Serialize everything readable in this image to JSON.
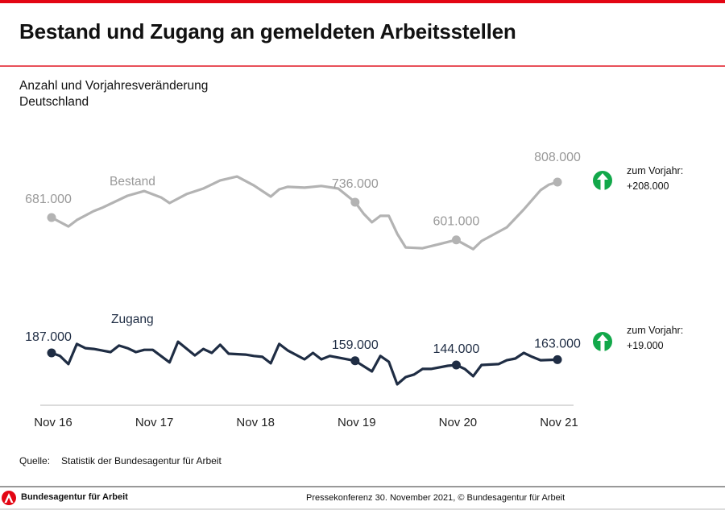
{
  "header": {
    "title": "Bestand und Zugang an gemeldeten Arbeitsstellen"
  },
  "subtitle": {
    "line1": "Anzahl und Vorjahresveränderung",
    "line2": "Deutschland"
  },
  "source": {
    "label": "Quelle:",
    "text": "Statistik der Bundesagentur für Arbeit"
  },
  "footer": {
    "brand": "Bundesagentur für Arbeit",
    "press": "Pressekonferenz 30. November 2021, © Bundesagentur für Arbeit"
  },
  "colors": {
    "accent": "#e30613",
    "bestand": "#b3b3b3",
    "bestand_label": "#999999",
    "zugang": "#1f2d44",
    "arrow": "#12a84a"
  },
  "yoy": [
    {
      "label": "zum Vorjahr:",
      "value": "+208.000",
      "icon": "arrow-up-icon"
    },
    {
      "label": "zum Vorjahr:",
      "value": "+19.000",
      "icon": "arrow-up-icon"
    }
  ],
  "chart_data": {
    "type": "line",
    "x_ticks": [
      "Nov 16",
      "Nov 17",
      "Nov 18",
      "Nov 19",
      "Nov 20",
      "Nov 21"
    ],
    "grid": false,
    "series": [
      {
        "name": "Bestand",
        "points": [
          [
            "2016-11",
            681
          ],
          [
            "2017-01",
            649
          ],
          [
            "2017-02",
            672
          ],
          [
            "2017-04",
            704
          ],
          [
            "2017-05",
            716
          ],
          [
            "2017-08",
            759
          ],
          [
            "2017-10",
            776
          ],
          [
            "2017-12",
            753
          ],
          [
            "2018-01",
            733
          ],
          [
            "2018-03",
            765
          ],
          [
            "2018-05",
            785
          ],
          [
            "2018-07",
            814
          ],
          [
            "2018-09",
            828
          ],
          [
            "2018-11",
            796
          ],
          [
            "2019-01",
            756
          ],
          [
            "2019-02",
            782
          ],
          [
            "2019-03",
            791
          ],
          [
            "2019-05",
            788
          ],
          [
            "2019-07",
            794
          ],
          [
            "2019-09",
            785
          ],
          [
            "2019-11",
            736
          ],
          [
            "2019-12",
            695
          ],
          [
            "2020-01",
            664
          ],
          [
            "2020-02",
            687
          ],
          [
            "2020-03",
            687
          ],
          [
            "2020-04",
            623
          ],
          [
            "2020-05",
            574
          ],
          [
            "2020-07",
            571
          ],
          [
            "2020-09",
            586
          ],
          [
            "2020-11",
            601
          ],
          [
            "2021-01",
            568
          ],
          [
            "2021-02",
            597
          ],
          [
            "2021-05",
            646
          ],
          [
            "2021-07",
            710
          ],
          [
            "2021-09",
            779
          ],
          [
            "2021-10",
            799
          ],
          [
            "2021-11",
            808
          ]
        ],
        "labels": [
          {
            "x": "2016-11",
            "text": "681.000"
          },
          {
            "x": "2019-11",
            "text": "736.000"
          },
          {
            "x": "2020-11",
            "text": "601.000"
          },
          {
            "x": "2021-11",
            "text": "808.000"
          }
        ]
      },
      {
        "name": "Zugang",
        "points": [
          [
            "2016-11",
            187
          ],
          [
            "2016-12",
            176
          ],
          [
            "2017-01",
            147
          ],
          [
            "2017-02",
            219
          ],
          [
            "2017-03",
            204
          ],
          [
            "2017-04",
            201
          ],
          [
            "2017-06",
            190
          ],
          [
            "2017-07",
            213
          ],
          [
            "2017-08",
            204
          ],
          [
            "2017-09",
            190
          ],
          [
            "2017-10",
            198
          ],
          [
            "2017-11",
            198
          ],
          [
            "2018-01",
            153
          ],
          [
            "2018-02",
            227
          ],
          [
            "2018-04",
            178
          ],
          [
            "2018-05",
            201
          ],
          [
            "2018-06",
            187
          ],
          [
            "2018-07",
            216
          ],
          [
            "2018-08",
            184
          ],
          [
            "2018-10",
            181
          ],
          [
            "2018-11",
            176
          ],
          [
            "2018-12",
            173
          ],
          [
            "2019-01",
            150
          ],
          [
            "2019-02",
            219
          ],
          [
            "2019-03",
            196
          ],
          [
            "2019-05",
            164
          ],
          [
            "2019-06",
            187
          ],
          [
            "2019-07",
            164
          ],
          [
            "2019-08",
            176
          ],
          [
            "2019-11",
            159
          ],
          [
            "2020-01",
            121
          ],
          [
            "2020-02",
            176
          ],
          [
            "2020-03",
            155
          ],
          [
            "2020-04",
            75
          ],
          [
            "2020-05",
            101
          ],
          [
            "2020-06",
            110
          ],
          [
            "2020-07",
            130
          ],
          [
            "2020-08",
            130
          ],
          [
            "2020-10",
            141
          ],
          [
            "2020-11",
            144
          ],
          [
            "2020-12",
            130
          ],
          [
            "2021-01",
            104
          ],
          [
            "2021-02",
            144
          ],
          [
            "2021-04",
            147
          ],
          [
            "2021-05",
            161
          ],
          [
            "2021-06",
            167
          ],
          [
            "2021-07",
            187
          ],
          [
            "2021-08",
            173
          ],
          [
            "2021-09",
            161
          ],
          [
            "2021-11",
            163
          ]
        ],
        "labels": [
          {
            "x": "2016-11",
            "text": "187.000"
          },
          {
            "x": "2019-11",
            "text": "159.000"
          },
          {
            "x": "2020-11",
            "text": "144.000"
          },
          {
            "x": "2021-11",
            "text": "163.000"
          }
        ]
      }
    ]
  }
}
